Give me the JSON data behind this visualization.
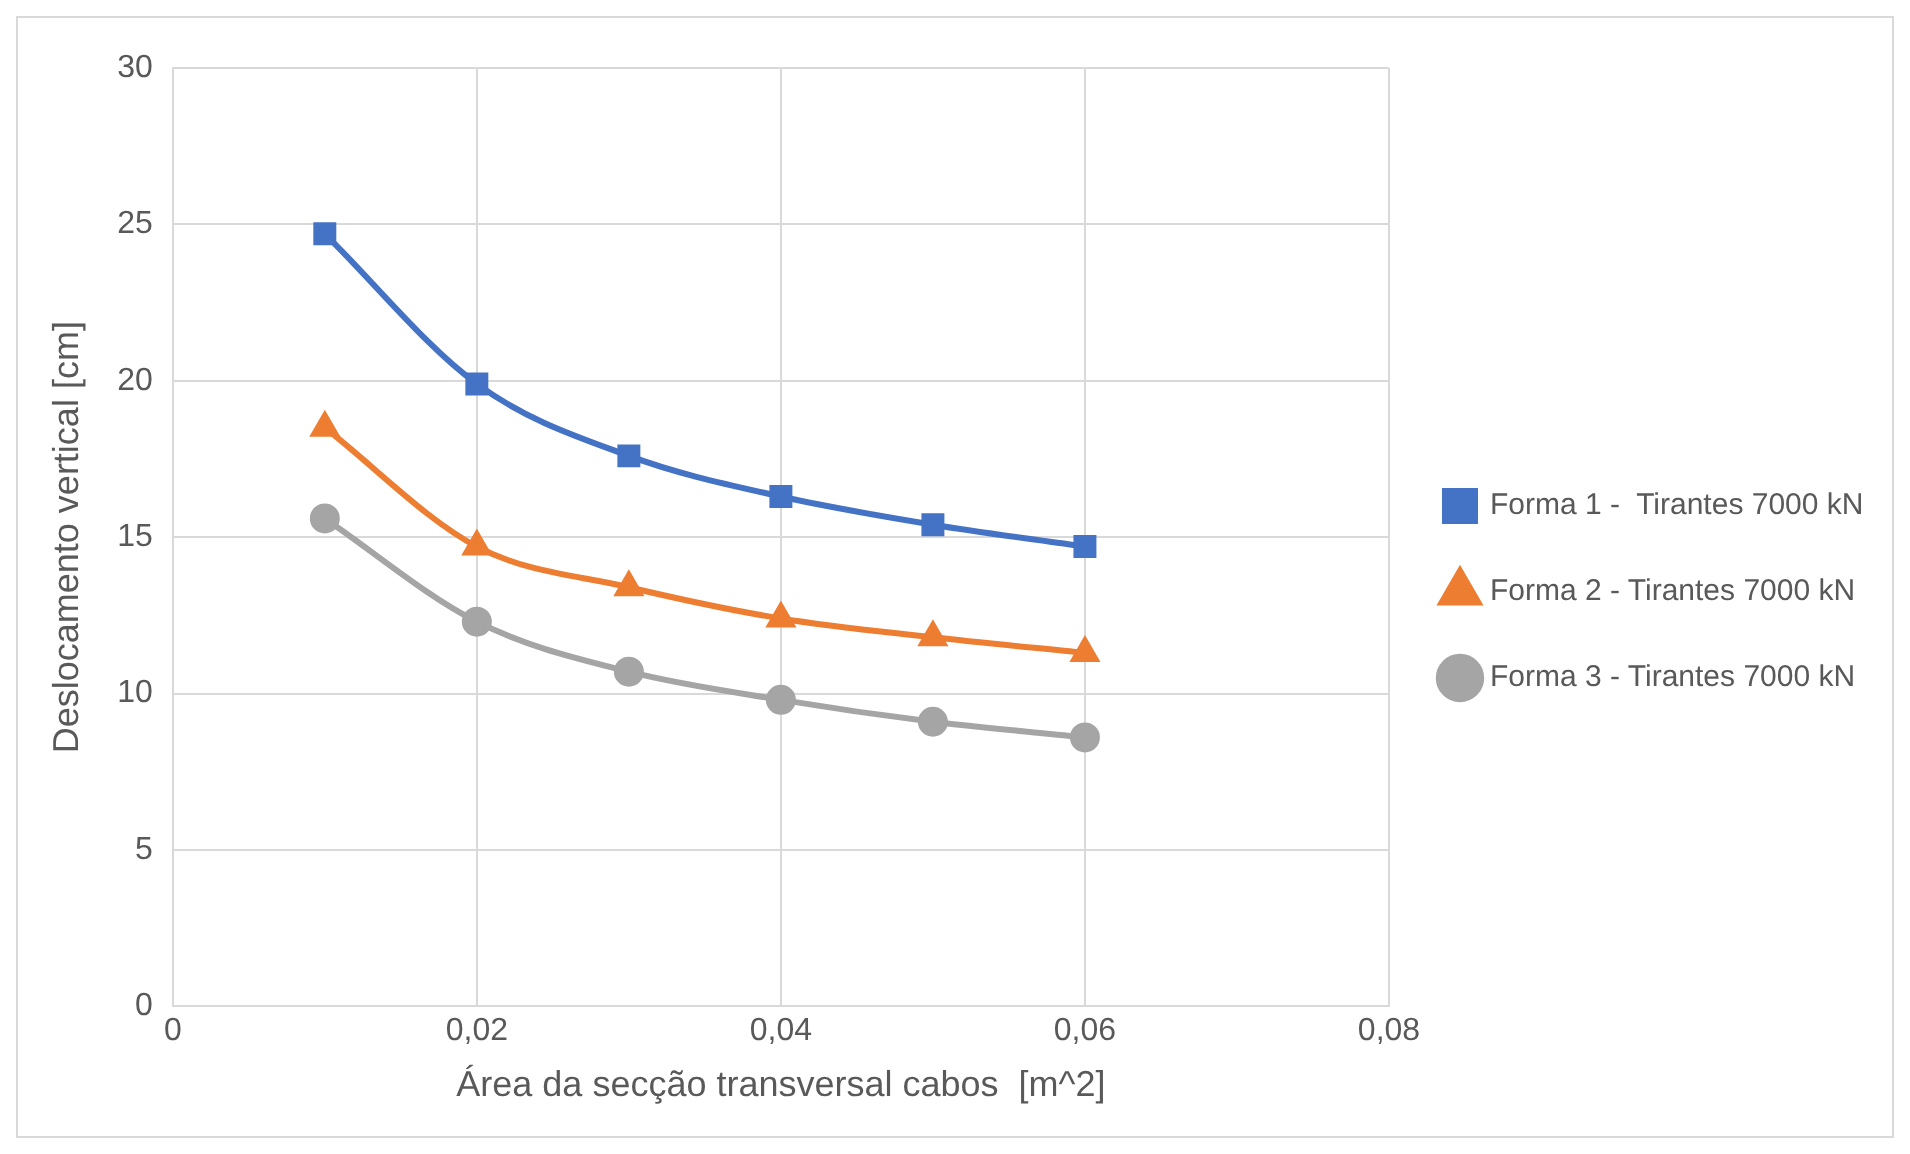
{
  "chart_data": {
    "type": "line",
    "xlabel": "Área da secção transversal cabos  [m^2]",
    "ylabel": "Deslocamento vertical [cm]",
    "x": [
      0.01,
      0.02,
      0.03,
      0.04,
      0.05,
      0.06
    ],
    "series": [
      {
        "name": "Forma 1 -  Tirantes 7000 kN",
        "color": "#4472c4",
        "marker": "square",
        "values": [
          24.7,
          19.9,
          17.6,
          16.3,
          15.4,
          14.7
        ]
      },
      {
        "name": "Forma 2 - Tirantes 7000 kN",
        "color": "#ed7d31",
        "marker": "triangle",
        "values": [
          18.5,
          14.7,
          13.4,
          12.4,
          11.8,
          11.3
        ]
      },
      {
        "name": "Forma 3 - Tirantes 7000 kN",
        "color": "#a5a5a5",
        "marker": "circle",
        "values": [
          15.6,
          12.3,
          10.7,
          9.8,
          9.1,
          8.6
        ]
      }
    ],
    "xlim": [
      0,
      0.08
    ],
    "xticks": [
      0,
      {
        "value": 0.02,
        "label": "0,02"
      },
      {
        "value": 0.04,
        "label": "0,04"
      },
      {
        "value": 0.06,
        "label": "0,06"
      },
      {
        "value": 0.08,
        "label": "0,08"
      }
    ],
    "ylim": [
      0,
      30
    ],
    "yticks": [
      0,
      5,
      10,
      15,
      20,
      25,
      30
    ],
    "grid": true,
    "legend": "right",
    "line_style": "solid"
  }
}
